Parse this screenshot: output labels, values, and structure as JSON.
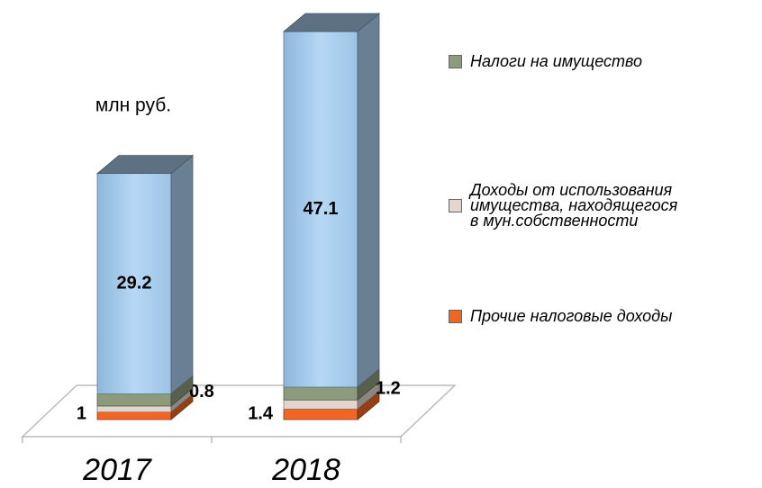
{
  "chart_data": {
    "type": "bar3d-stacked",
    "subtitle": "млн руб.",
    "categories": [
      "2017",
      "2018"
    ],
    "series": [
      {
        "name": "Прочие налоговые доходы",
        "color": "#f26522",
        "values": [
          1,
          1.4
        ]
      },
      {
        "name": "Доходы от использования имущества, находящегося в мун.собственности",
        "color": "#e3d6d0",
        "values": [
          0.8,
          1.2
        ]
      },
      {
        "name": "Налоги на имущество",
        "color": "#8c9b7c",
        "values": [
          1.6,
          1.7
        ]
      },
      {
        "color": "#a9cdee",
        "values": [
          29.2,
          47.1
        ]
      }
    ]
  }
}
